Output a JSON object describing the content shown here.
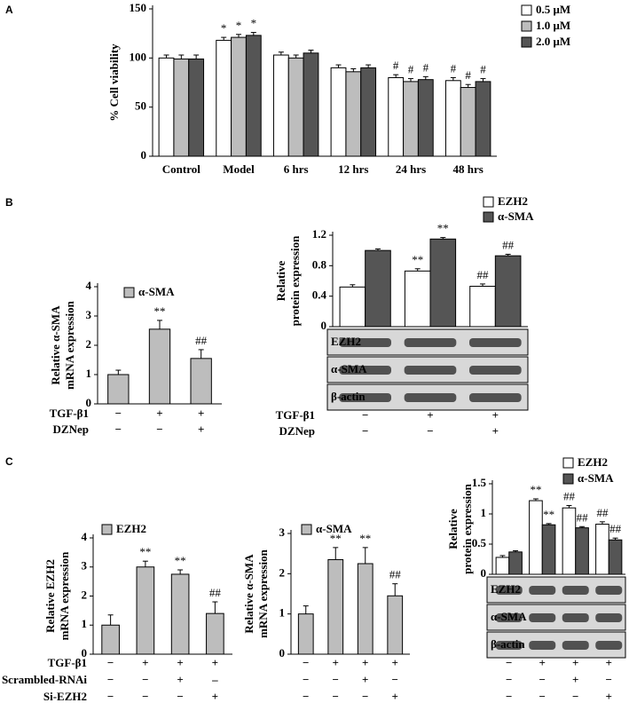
{
  "panel_labels": [
    "A",
    "B",
    "C"
  ],
  "chart_data": [
    {
      "type": "bar",
      "ylabel": [
        "% Cell viability"
      ],
      "categories": [
        "Control",
        "Model",
        "6 hrs",
        "12 hrs",
        "24 hrs",
        "48 hrs"
      ],
      "ylim": [
        0,
        150
      ],
      "yticks": [
        0,
        50,
        100,
        150
      ],
      "series": [
        {
          "name": "0.5 μM",
          "color": "#ffffff",
          "values": [
            100,
            118,
            103,
            90,
            80,
            77
          ],
          "errors": [
            3,
            3,
            3,
            3,
            3,
            3
          ],
          "markers": [
            null,
            "*",
            null,
            null,
            "#",
            "#"
          ]
        },
        {
          "name": "1.0 μM",
          "color": "#bdbdbd",
          "values": [
            99,
            121,
            100,
            86,
            76,
            70
          ],
          "errors": [
            4,
            3,
            3,
            3,
            3,
            3
          ],
          "markers": [
            null,
            "*",
            null,
            null,
            "#",
            "#"
          ]
        },
        {
          "name": "2.0 μM",
          "color": "#555555",
          "values": [
            99,
            123,
            105,
            90,
            78,
            76
          ],
          "errors": [
            4,
            3,
            3,
            3,
            3,
            3
          ],
          "markers": [
            null,
            "*",
            null,
            null,
            "#",
            "#"
          ]
        }
      ]
    },
    {
      "type": "bar",
      "ylabel": [
        "Relative α-SMA",
        "mRNA expression"
      ],
      "ylim": [
        0,
        4
      ],
      "yticks": [
        0,
        1,
        2,
        3,
        4
      ],
      "series": [
        {
          "name": "α-SMA",
          "color": "#bdbdbd",
          "values": [
            1.0,
            2.55,
            1.55
          ],
          "errors": [
            0.15,
            0.3,
            0.3
          ],
          "markers": [
            null,
            "**",
            "##"
          ]
        }
      ],
      "treatments": [
        {
          "name": "TGF-β1",
          "signs": [
            "−",
            "+",
            "+"
          ]
        },
        {
          "name": "DZNep",
          "signs": [
            "−",
            "−",
            "+"
          ]
        }
      ]
    },
    {
      "type": "bar",
      "ylabel": [
        "Relative",
        "protein expression"
      ],
      "ylim": [
        0,
        1.2
      ],
      "yticks": [
        0,
        0.4,
        0.8,
        1.2
      ],
      "series": [
        {
          "name": "EZH2",
          "color": "#ffffff",
          "values": [
            0.52,
            0.73,
            0.53
          ],
          "errors": [
            0.03,
            0.03,
            0.03
          ],
          "markers": [
            null,
            "**",
            "##"
          ]
        },
        {
          "name": "α-SMA",
          "color": "#555555",
          "values": [
            1.0,
            1.15,
            0.93
          ],
          "errors": [
            0.02,
            0.02,
            0.02
          ],
          "markers": [
            null,
            "**",
            "##"
          ]
        }
      ],
      "blots": [
        "EZH2",
        "α-SMA",
        "β-actin"
      ],
      "treatments": [
        {
          "name": "TGF-β1",
          "signs": [
            "−",
            "+",
            "+"
          ]
        },
        {
          "name": "DZNep",
          "signs": [
            "−",
            "−",
            "+"
          ]
        }
      ]
    },
    {
      "type": "bar",
      "ylabel": [
        "Relative EZH2",
        "mRNA expression"
      ],
      "ylim": [
        0,
        4
      ],
      "yticks": [
        0,
        1,
        2,
        3,
        4
      ],
      "series": [
        {
          "name": "EZH2",
          "color": "#bdbdbd",
          "values": [
            1.0,
            3.0,
            2.75,
            1.4
          ],
          "errors": [
            0.35,
            0.2,
            0.15,
            0.4
          ],
          "markers": [
            null,
            "**",
            "**",
            "##"
          ]
        }
      ],
      "treatments": [
        {
          "name": "TGF-β1",
          "signs": [
            "−",
            "+",
            "+",
            "+"
          ]
        },
        {
          "name": "Scrambled-RNAi",
          "signs": [
            "−",
            "−",
            "+",
            "–"
          ]
        },
        {
          "name": "Si-EZH2",
          "signs": [
            "−",
            "−",
            "−",
            "+"
          ]
        }
      ]
    },
    {
      "type": "bar",
      "ylabel": [
        "Relative α-SMA",
        "mRNA expression"
      ],
      "ylim": [
        0,
        3
      ],
      "yticks": [
        0,
        1,
        2,
        3
      ],
      "series": [
        {
          "name": "α-SMA",
          "color": "#bdbdbd",
          "values": [
            1.0,
            2.35,
            2.25,
            1.45
          ],
          "errors": [
            0.2,
            0.3,
            0.4,
            0.3
          ],
          "markers": [
            null,
            "**",
            "**",
            "##"
          ]
        }
      ],
      "treatments": [
        {
          "signs": [
            "−",
            "+",
            "+",
            "+"
          ]
        },
        {
          "signs": [
            "−",
            "−",
            "+",
            "−"
          ]
        },
        {
          "signs": [
            "−",
            "−",
            "−",
            "+"
          ]
        }
      ]
    },
    {
      "type": "bar",
      "ylabel": [
        "Relative",
        "protein expression"
      ],
      "ylim": [
        0,
        1.5
      ],
      "yticks": [
        0,
        0.5,
        1,
        1.5
      ],
      "series": [
        {
          "name": "EZH2",
          "color": "#ffffff",
          "values": [
            0.28,
            1.22,
            1.1,
            0.83
          ],
          "errors": [
            0.03,
            0.03,
            0.04,
            0.04
          ],
          "markers": [
            null,
            "**",
            "##",
            "##"
          ]
        },
        {
          "name": "α-SMA",
          "color": "#555555",
          "values": [
            0.37,
            0.82,
            0.77,
            0.57
          ],
          "errors": [
            0.02,
            0.02,
            0.02,
            0.03
          ],
          "markers": [
            null,
            "**",
            "##",
            "##"
          ]
        }
      ],
      "blots": [
        "EZH2",
        "α-SMA",
        "β-actin"
      ],
      "treatments": [
        {
          "signs": [
            "−",
            "+",
            "+",
            "+"
          ]
        },
        {
          "signs": [
            "−",
            "−",
            "+",
            "−"
          ]
        },
        {
          "signs": [
            "−",
            "−",
            "−",
            "+"
          ]
        }
      ]
    }
  ]
}
